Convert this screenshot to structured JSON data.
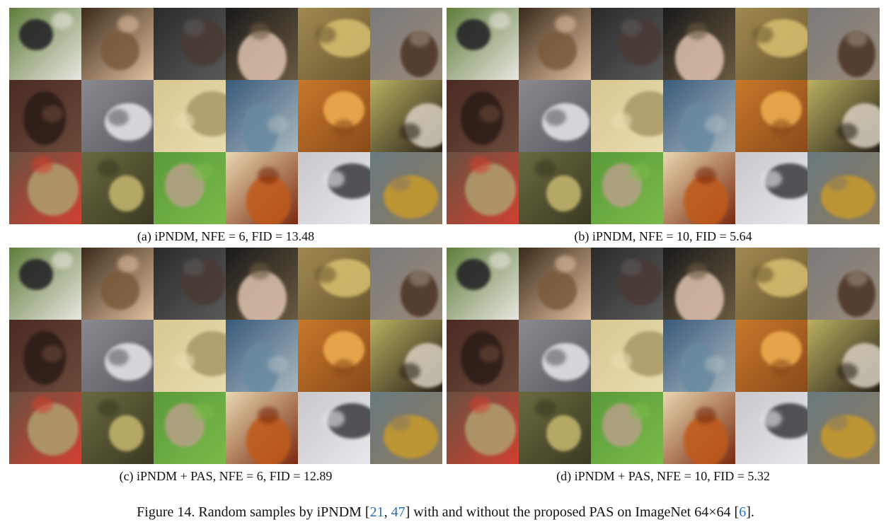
{
  "panels": [
    {
      "caption": "(a) iPNDM, NFE = 6, FID = 13.48"
    },
    {
      "caption": "(b) iPNDM, NFE = 10, FID = 5.64"
    },
    {
      "caption": "(c) iPNDM + PAS, NFE = 6, FID = 12.89"
    },
    {
      "caption": "(d) iPNDM + PAS, NFE = 10, FID = 5.32"
    }
  ],
  "tiles": [
    {
      "name": "dog-photo",
      "bg": "#5f7d3a",
      "fg": "#1e1e22",
      "accent": "#e8e6e0"
    },
    {
      "name": "hand-tool-photo",
      "bg": "#3a2a1a",
      "fg": "#7a5a3a",
      "accent": "#e0c0a0"
    },
    {
      "name": "dark-animal-photo",
      "bg": "#2a2a2a",
      "fg": "#4a3a34",
      "accent": "#5a5a5a"
    },
    {
      "name": "hand-holding-object-photo",
      "bg": "#1a1a1a",
      "fg": "#e0c4b0",
      "accent": "#6a5a40"
    },
    {
      "name": "bamboo-sticks-photo",
      "bg": "#a08a50",
      "fg": "#d8c070",
      "accent": "#6a5830"
    },
    {
      "name": "bird-on-rock-photo",
      "bg": "#7a7a7a",
      "fg": "#4a3222",
      "accent": "#9a8a7a"
    },
    {
      "name": "keyboard-photo",
      "bg": "#4a2a22",
      "fg": "#2a1a16",
      "accent": "#6a4a3a"
    },
    {
      "name": "limousine-photo",
      "bg": "#8a8a90",
      "fg": "#e8e8ec",
      "accent": "#5a5a62"
    },
    {
      "name": "interior-wall-photo",
      "bg": "#d8c890",
      "fg": "#a89868",
      "accent": "#e8dcb0"
    },
    {
      "name": "aquarium-photo",
      "bg": "#3a5a7a",
      "fg": "#6a8aa0",
      "accent": "#a8b8c0"
    },
    {
      "name": "orange-texture-photo",
      "bg": "#c8782a",
      "fg": "#f0b050",
      "accent": "#8a4a1a"
    },
    {
      "name": "porcupine-photo",
      "bg": "#b8b060",
      "fg": "#d8d0c0",
      "accent": "#2a2218"
    },
    {
      "name": "food-market-photo",
      "bg": "#6a5040",
      "fg": "#b0a070",
      "accent": "#d04030"
    },
    {
      "name": "teapot-photo",
      "bg": "#6a6a40",
      "fg": "#c8b870",
      "accent": "#3a3a22"
    },
    {
      "name": "goose-on-grass-photo",
      "bg": "#5a9a3a",
      "fg": "#b8a088",
      "accent": "#7aba4a"
    },
    {
      "name": "orange-carving-photo",
      "bg": "#e8d8b0",
      "fg": "#c05a1a",
      "accent": "#7a2a10"
    },
    {
      "name": "black-bird-photo",
      "bg": "#c8c8cc",
      "fg": "#3a3a3e",
      "accent": "#e8e8ec"
    },
    {
      "name": "monkey-on-branch-photo",
      "bg": "#6a7a80",
      "fg": "#c89a2a",
      "accent": "#8a7a60"
    }
  ],
  "figure": {
    "prefix": "Figure 14. Random samples by iPNDM [",
    "ref1": "21",
    "sep1": ", ",
    "ref2": "47",
    "middle": "] with and without the proposed PAS on ImageNet 64×64 [",
    "ref3": "6",
    "suffix": "]."
  }
}
